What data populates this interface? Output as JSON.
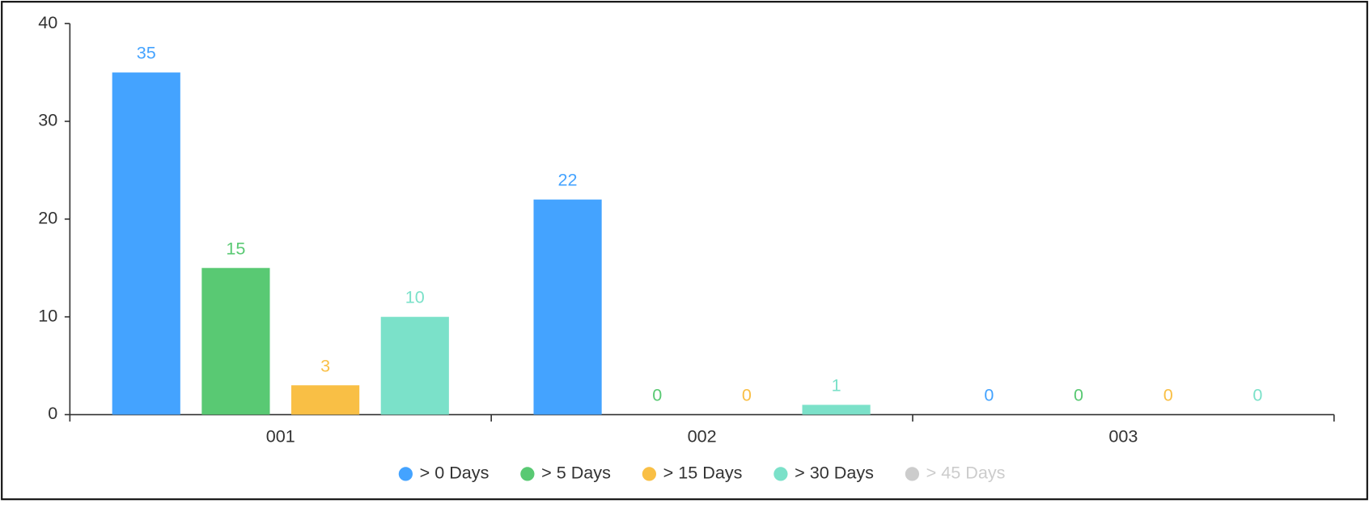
{
  "chart_data": {
    "type": "bar",
    "categories": [
      "001",
      "002",
      "003"
    ],
    "series": [
      {
        "name": "> 0 Days",
        "color": "#44a3ff",
        "values": [
          35,
          22,
          0
        ]
      },
      {
        "name": "> 5 Days",
        "color": "#59c973",
        "values": [
          15,
          0,
          0
        ]
      },
      {
        "name": "> 15 Days",
        "color": "#f9bf45",
        "values": [
          3,
          0,
          0
        ]
      },
      {
        "name": "> 30 Days",
        "color": "#7be1c9",
        "values": [
          10,
          1,
          0
        ]
      },
      {
        "name": "> 45 Days",
        "color": "#cccccc",
        "values": [
          null,
          null,
          null
        ],
        "hidden": true
      }
    ],
    "ylim": [
      0,
      40
    ],
    "yticks": [
      0,
      10,
      20,
      30,
      40
    ],
    "grid": false,
    "legend": "bottom"
  }
}
